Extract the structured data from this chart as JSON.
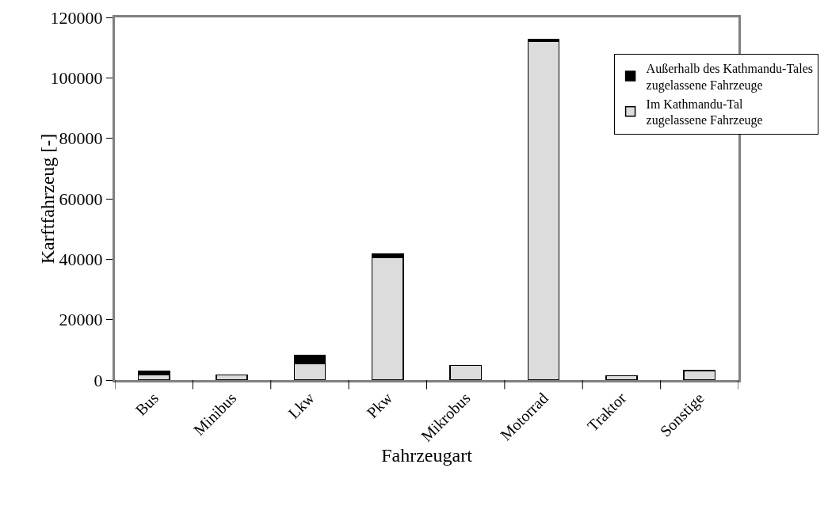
{
  "chart_data": {
    "type": "bar",
    "stacked": true,
    "xlabel": "Fahrzeugart",
    "ylabel": "Karftfahrzeug [-]",
    "categories": [
      "Bus",
      "Minibus",
      "Lkw",
      "Pkw",
      "Mikrobus",
      "Motorrad",
      "Traktor",
      "Sonstige"
    ],
    "series": [
      {
        "name": "Im Kathmandu-Tal zugelassene Fahrzeuge",
        "color": "#dcdcdc",
        "values": [
          1800,
          1700,
          5500,
          40600,
          4900,
          112100,
          1500,
          3200
        ]
      },
      {
        "name": "Außerhalb des Kathmandu-Tales zugelassene Fahrzeuge",
        "color": "#000000",
        "values": [
          1200,
          0,
          2600,
          1000,
          0,
          600,
          0,
          0
        ]
      }
    ],
    "ylim": [
      0,
      120000
    ],
    "yticks": [
      0,
      20000,
      40000,
      60000,
      80000,
      100000,
      120000
    ],
    "grid": false,
    "legend": "top right"
  }
}
